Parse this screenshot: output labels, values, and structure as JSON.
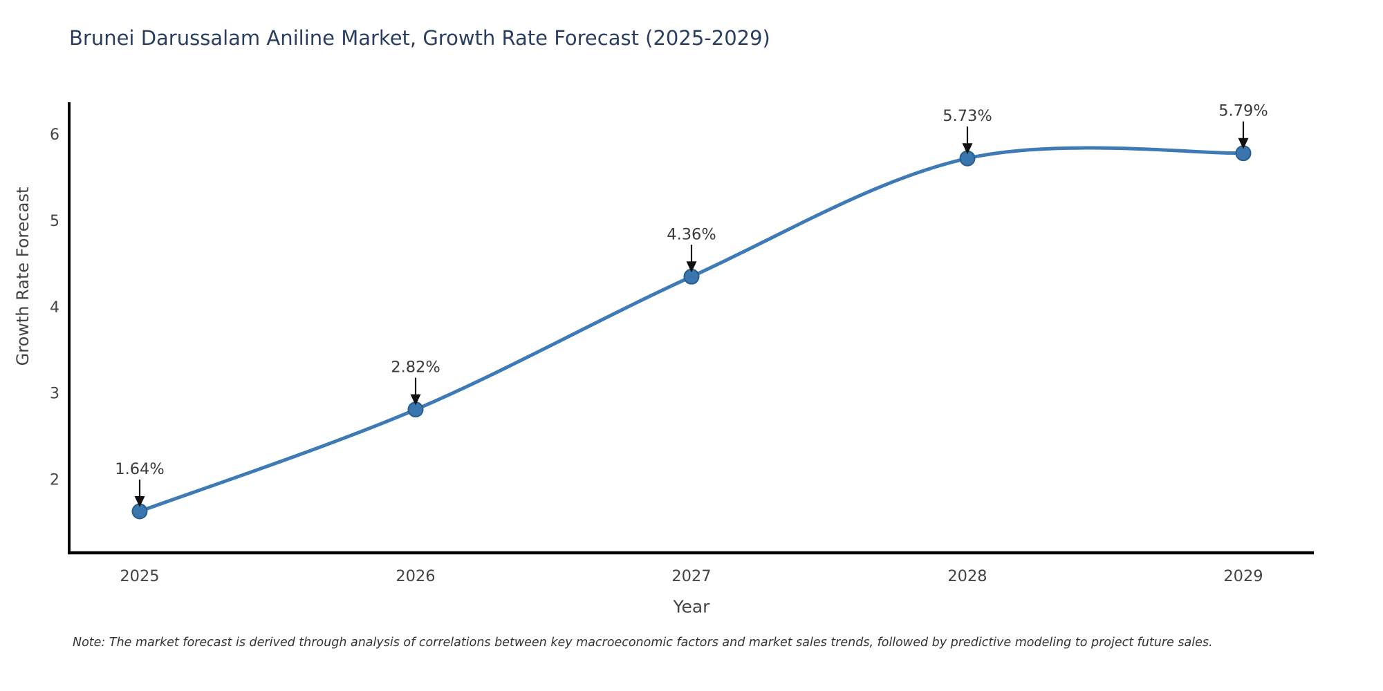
{
  "title": "Brunei Darussalam Aniline Market, Growth Rate Forecast (2025-2029)",
  "note": "Note: The market forecast is derived through analysis of correlations between key macroeconomic factors and market sales trends, followed by predictive modeling to project future sales.",
  "chart_data": {
    "type": "line",
    "title": "Brunei Darussalam Aniline Market, Growth Rate Forecast (2025-2029)",
    "xlabel": "Year",
    "ylabel": "Growth Rate Forecast",
    "categories": [
      "2025",
      "2026",
      "2027",
      "2028",
      "2029"
    ],
    "values": [
      1.64,
      2.82,
      4.36,
      5.73,
      5.79
    ],
    "point_labels": [
      "1.64%",
      "2.82%",
      "4.36%",
      "5.73%",
      "5.79%"
    ],
    "yticks": [
      2,
      3,
      4,
      5,
      6
    ],
    "ylim": [
      1.16,
      6.38
    ],
    "line_shape": "spline",
    "grid": false,
    "legend_position": "none",
    "annotation_note": "Note: The market forecast is derived through analysis of correlations between key macroeconomic factors and market sales trends, followed by predictive modeling to project future sales.",
    "colors": {
      "line": "#3e7ab5",
      "marker_fill": "#3a76ae",
      "marker_edge": "#2a5d8c",
      "axis_line": "#000000",
      "title_text": "#2a3f5f",
      "axis_title_text": "#444444",
      "tick_text": "#444444",
      "annotation_text": "#3a3a3a",
      "arrow": "#111111",
      "note_text": "#333333",
      "background": "#ffffff"
    }
  }
}
